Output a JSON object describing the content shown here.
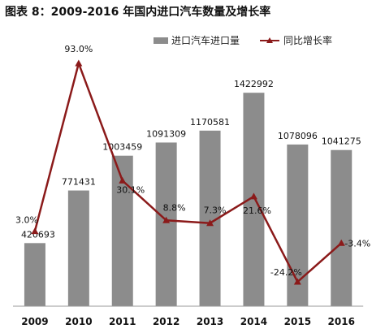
{
  "chart_data": {
    "type": "bar",
    "title": "图表 8：2009-2016 年国内进口汽车数量及增长率",
    "categories": [
      "2009",
      "2010",
      "2011",
      "2012",
      "2013",
      "2014",
      "2015",
      "2016"
    ],
    "series": [
      {
        "name": "进口汽车进口量",
        "type": "bar",
        "values": [
          420693,
          771431,
          1003459,
          1091309,
          1170581,
          1422992,
          1078096,
          1041275
        ],
        "labels": [
          "420693",
          "771431",
          "1003459",
          "1091309",
          "1170581",
          "1422992",
          "1078096",
          "1041275"
        ],
        "color": "#8c8c8c"
      },
      {
        "name": "同比增长率",
        "type": "line",
        "values": [
          3.0,
          93.0,
          30.1,
          8.8,
          7.3,
          21.6,
          -24.2,
          -3.4
        ],
        "labels": [
          "3.0%",
          "93.0%",
          "30.1%",
          "8.8%",
          "7.3%",
          "21.6%",
          "-24.2%",
          "-3.4%"
        ],
        "color": "#8b1a1a"
      }
    ],
    "legend_position": "top-right",
    "grid": false
  }
}
